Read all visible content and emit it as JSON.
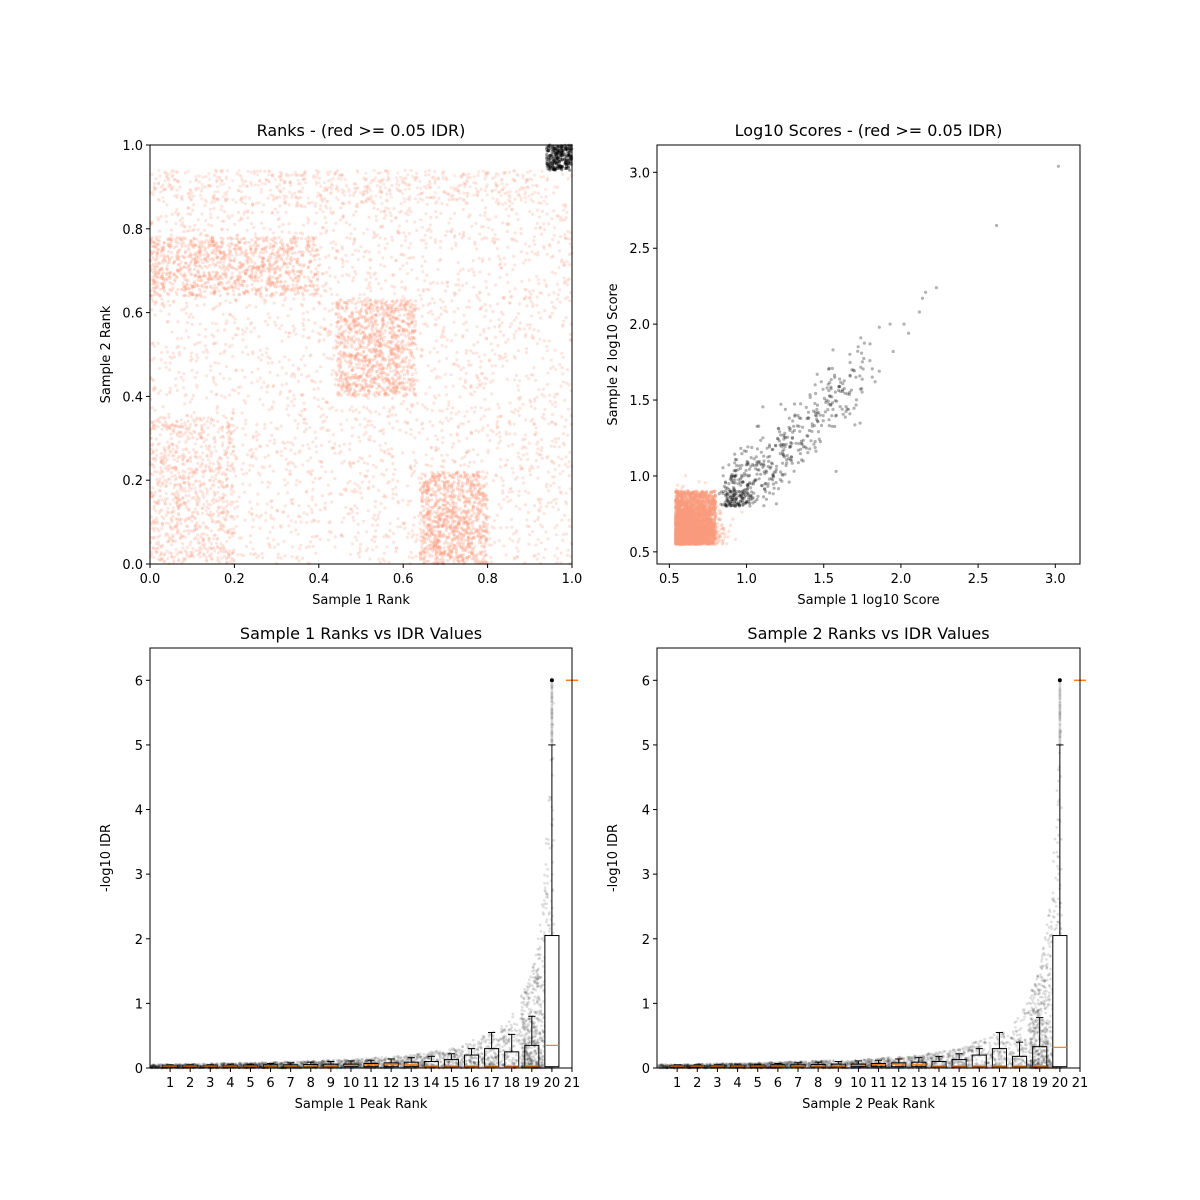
{
  "chart_data": [
    {
      "type": "scatter",
      "title": "Ranks - (red >= 0.05 IDR)",
      "xlabel": "Sample 1 Rank",
      "ylabel": "Sample 2 Rank",
      "xlim": [
        0,
        1
      ],
      "ylim": [
        0,
        1
      ],
      "xticks": [
        "0.0",
        "0.2",
        "0.4",
        "0.6",
        "0.8",
        "1.0"
      ],
      "yticks": [
        "0.0",
        "0.2",
        "0.4",
        "0.6",
        "0.8",
        "1.0"
      ],
      "colors": {
        "idr_above_threshold": "#fb9a7e",
        "idr_below_threshold": "#000000"
      },
      "dense_regions": [
        {
          "x": [
            0.44,
            0.63
          ],
          "y": [
            0.4,
            0.63
          ]
        },
        {
          "x": [
            0.0,
            0.4
          ],
          "y": [
            0.64,
            0.78
          ]
        },
        {
          "x": [
            0.64,
            0.8
          ],
          "y": [
            0.0,
            0.22
          ]
        }
      ],
      "black_cluster": {
        "x": [
          0.94,
          1.0
        ],
        "y": [
          0.94,
          1.0
        ]
      }
    },
    {
      "type": "scatter",
      "title": "Log10 Scores - (red >= 0.05 IDR)",
      "xlabel": "Sample 1 log10 Score",
      "ylabel": "Sample 2 log10 Score",
      "xlim": [
        0.42,
        3.16
      ],
      "ylim": [
        0.42,
        3.18
      ],
      "xticks": [
        "0.5",
        "1.0",
        "1.5",
        "2.0",
        "2.5",
        "3.0"
      ],
      "yticks": [
        "0.5",
        "1.0",
        "1.5",
        "2.0",
        "2.5",
        "3.0"
      ],
      "colors": {
        "idr_above_threshold": "#fb9a7e",
        "idr_below_threshold": "#000000"
      },
      "outliers": [
        [
          3.02,
          3.04
        ],
        [
          2.62,
          2.65
        ],
        [
          2.23,
          2.24
        ],
        [
          2.16,
          2.21
        ],
        [
          2.14,
          2.17
        ],
        [
          2.12,
          2.08
        ],
        [
          2.05,
          1.94
        ],
        [
          2.02,
          2.0
        ],
        [
          1.95,
          1.82
        ],
        [
          1.93,
          2.0
        ],
        [
          1.86,
          1.98
        ],
        [
          1.86,
          1.69
        ],
        [
          1.8,
          1.87
        ],
        [
          1.74,
          1.91
        ],
        [
          1.58,
          1.03
        ],
        [
          1.56,
          1.83
        ]
      ]
    },
    {
      "type": "box",
      "title": "Sample 1 Ranks vs IDR Values",
      "xlabel": "Sample 1 Peak Rank",
      "ylabel": "-log10 IDR",
      "xlim": [
        0,
        21
      ],
      "ylim": [
        0,
        6.5
      ],
      "xticks": [
        "1",
        "2",
        "3",
        "4",
        "5",
        "6",
        "7",
        "8",
        "9",
        "10",
        "11",
        "12",
        "13",
        "14",
        "15",
        "16",
        "17",
        "18",
        "19",
        "20",
        "21"
      ],
      "yticks": [
        "0",
        "1",
        "2",
        "3",
        "4",
        "5",
        "6"
      ],
      "boxes": [
        {
          "x": 1,
          "q1": 0.02,
          "median": 0.03,
          "q3": 0.04,
          "whisker": 0.05
        },
        {
          "x": 2,
          "q1": 0.02,
          "median": 0.03,
          "q3": 0.04,
          "whisker": 0.05
        },
        {
          "x": 3,
          "q1": 0.02,
          "median": 0.03,
          "q3": 0.04,
          "whisker": 0.05
        },
        {
          "x": 4,
          "q1": 0.02,
          "median": 0.03,
          "q3": 0.04,
          "whisker": 0.06
        },
        {
          "x": 5,
          "q1": 0.02,
          "median": 0.03,
          "q3": 0.045,
          "whisker": 0.06
        },
        {
          "x": 6,
          "q1": 0.02,
          "median": 0.03,
          "q3": 0.05,
          "whisker": 0.07
        },
        {
          "x": 7,
          "q1": 0.02,
          "median": 0.03,
          "q3": 0.05,
          "whisker": 0.08
        },
        {
          "x": 8,
          "q1": 0.02,
          "median": 0.03,
          "q3": 0.055,
          "whisker": 0.09
        },
        {
          "x": 9,
          "q1": 0.02,
          "median": 0.03,
          "q3": 0.06,
          "whisker": 0.1
        },
        {
          "x": 10,
          "q1": 0.02,
          "median": 0.04,
          "q3": 0.06,
          "whisker": 0.11
        },
        {
          "x": 11,
          "q1": 0.02,
          "median": 0.05,
          "q3": 0.07,
          "whisker": 0.12
        },
        {
          "x": 12,
          "q1": 0.02,
          "median": 0.06,
          "q3": 0.08,
          "whisker": 0.14
        },
        {
          "x": 13,
          "q1": 0.02,
          "median": 0.05,
          "q3": 0.09,
          "whisker": 0.16
        },
        {
          "x": 14,
          "q1": 0.02,
          "median": 0.03,
          "q3": 0.1,
          "whisker": 0.18
        },
        {
          "x": 15,
          "q1": 0.02,
          "median": 0.03,
          "q3": 0.13,
          "whisker": 0.22
        },
        {
          "x": 16,
          "q1": 0.02,
          "median": 0.03,
          "q3": 0.2,
          "whisker": 0.3
        },
        {
          "x": 17,
          "q1": 0.02,
          "median": 0.03,
          "q3": 0.3,
          "whisker": 0.55
        },
        {
          "x": 18,
          "q1": 0.02,
          "median": 0.03,
          "q3": 0.25,
          "whisker": 0.52
        },
        {
          "x": 19,
          "q1": 0.02,
          "median": 0.03,
          "q3": 0.35,
          "whisker": 0.8
        },
        {
          "x": 20,
          "q1": 0.02,
          "median": 0.35,
          "q3": 2.05,
          "whisker": 5.0,
          "flier": 6.0
        },
        {
          "x": 21,
          "median": 6.0
        }
      ]
    },
    {
      "type": "box",
      "title": "Sample 2 Ranks vs IDR Values",
      "xlabel": "Sample 2 Peak Rank",
      "ylabel": "-log10 IDR",
      "xlim": [
        0,
        21
      ],
      "ylim": [
        0,
        6.5
      ],
      "xticks": [
        "1",
        "2",
        "3",
        "4",
        "5",
        "6",
        "7",
        "8",
        "9",
        "10",
        "11",
        "12",
        "13",
        "14",
        "15",
        "16",
        "17",
        "18",
        "19",
        "20",
        "21"
      ],
      "yticks": [
        "0",
        "1",
        "2",
        "3",
        "4",
        "5",
        "6"
      ],
      "boxes": [
        {
          "x": 1,
          "q1": 0.02,
          "median": 0.03,
          "q3": 0.04,
          "whisker": 0.05
        },
        {
          "x": 2,
          "q1": 0.02,
          "median": 0.03,
          "q3": 0.04,
          "whisker": 0.05
        },
        {
          "x": 3,
          "q1": 0.02,
          "median": 0.03,
          "q3": 0.04,
          "whisker": 0.05
        },
        {
          "x": 4,
          "q1": 0.02,
          "median": 0.03,
          "q3": 0.04,
          "whisker": 0.06
        },
        {
          "x": 5,
          "q1": 0.02,
          "median": 0.03,
          "q3": 0.045,
          "whisker": 0.06
        },
        {
          "x": 6,
          "q1": 0.02,
          "median": 0.03,
          "q3": 0.05,
          "whisker": 0.07
        },
        {
          "x": 7,
          "q1": 0.02,
          "median": 0.03,
          "q3": 0.05,
          "whisker": 0.08
        },
        {
          "x": 8,
          "q1": 0.02,
          "median": 0.03,
          "q3": 0.055,
          "whisker": 0.09
        },
        {
          "x": 9,
          "q1": 0.02,
          "median": 0.03,
          "q3": 0.06,
          "whisker": 0.1
        },
        {
          "x": 10,
          "q1": 0.02,
          "median": 0.04,
          "q3": 0.06,
          "whisker": 0.11
        },
        {
          "x": 11,
          "q1": 0.02,
          "median": 0.05,
          "q3": 0.07,
          "whisker": 0.12
        },
        {
          "x": 12,
          "q1": 0.02,
          "median": 0.06,
          "q3": 0.08,
          "whisker": 0.14
        },
        {
          "x": 13,
          "q1": 0.02,
          "median": 0.05,
          "q3": 0.09,
          "whisker": 0.16
        },
        {
          "x": 14,
          "q1": 0.02,
          "median": 0.03,
          "q3": 0.1,
          "whisker": 0.18
        },
        {
          "x": 15,
          "q1": 0.02,
          "median": 0.03,
          "q3": 0.13,
          "whisker": 0.22
        },
        {
          "x": 16,
          "q1": 0.02,
          "median": 0.03,
          "q3": 0.2,
          "whisker": 0.3
        },
        {
          "x": 17,
          "q1": 0.02,
          "median": 0.03,
          "q3": 0.3,
          "whisker": 0.55
        },
        {
          "x": 18,
          "q1": 0.02,
          "median": 0.03,
          "q3": 0.18,
          "whisker": 0.4
        },
        {
          "x": 19,
          "q1": 0.02,
          "median": 0.03,
          "q3": 0.33,
          "whisker": 0.78
        },
        {
          "x": 20,
          "q1": 0.02,
          "median": 0.32,
          "q3": 2.05,
          "whisker": 5.0,
          "flier": 6.0
        },
        {
          "x": 21,
          "median": 6.0
        }
      ]
    }
  ]
}
